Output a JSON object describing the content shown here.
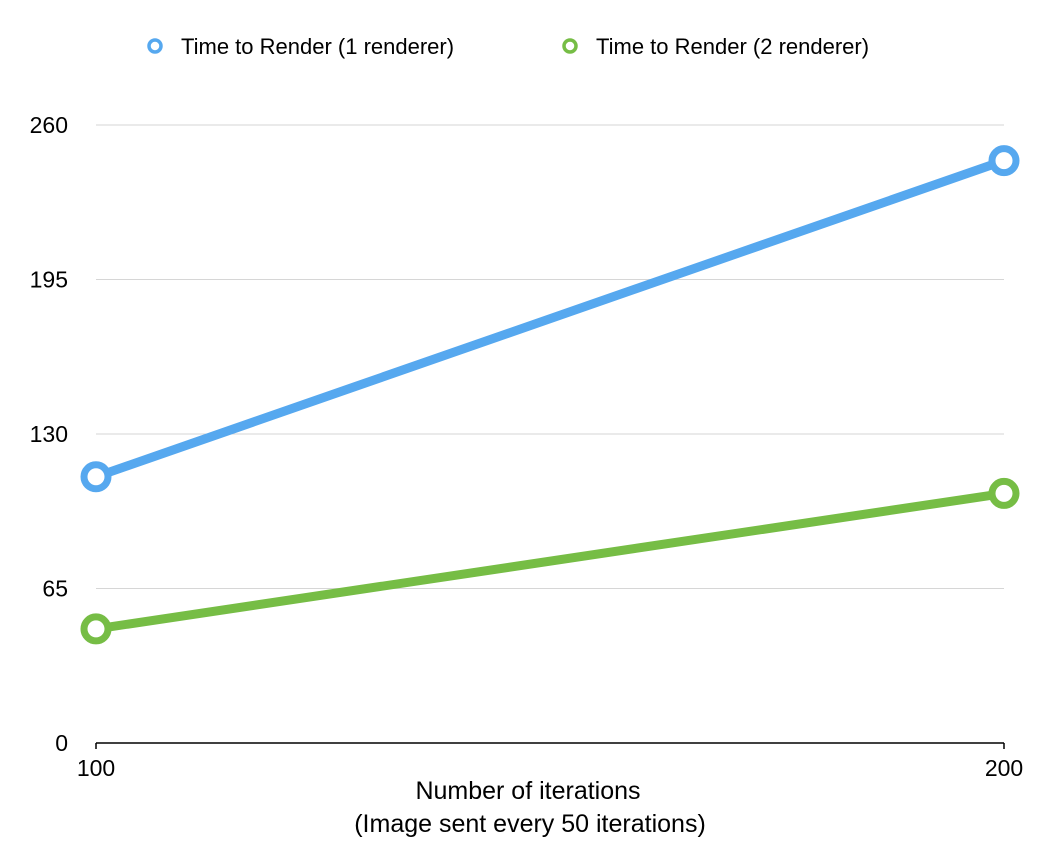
{
  "chart_data": {
    "type": "line",
    "title": "",
    "xlabel": "Number of iterations",
    "xlabel_sub": "(Image sent every 50 iterations)",
    "ylabel": "",
    "x": [
      100,
      200
    ],
    "x_tick_labels": [
      "100",
      "200"
    ],
    "ylim": [
      0,
      260
    ],
    "y_ticks": [
      0,
      65,
      130,
      195,
      260
    ],
    "y_tick_labels": [
      "0",
      "65",
      "130",
      "195",
      "260"
    ],
    "grid": true,
    "legend_position": "top",
    "series": [
      {
        "name": "Time to Render (1 renderer)",
        "values": [
          112,
          245
        ],
        "color": "#56a8ef"
      },
      {
        "name": "Time to Render (2 renderer)",
        "values": [
          48,
          105
        ],
        "color": "#76bd45"
      }
    ]
  }
}
